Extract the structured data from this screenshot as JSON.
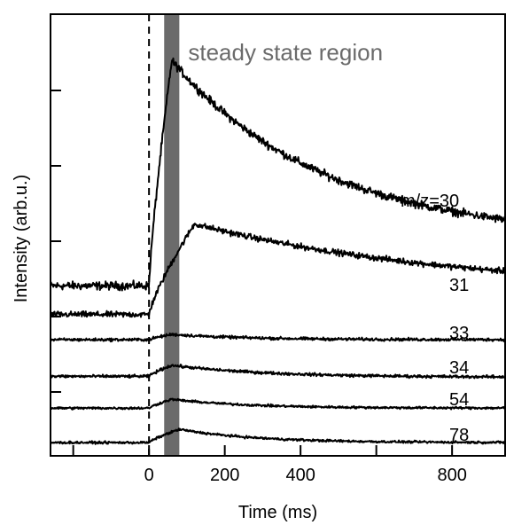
{
  "chart_data": {
    "type": "line",
    "xlabel": "Time (ms)",
    "ylabel": "Intensity (arb.u.)",
    "xlim": [
      -260,
      940
    ],
    "ylim": [
      0,
      10
    ],
    "x_ticks": [
      0,
      200,
      400,
      800
    ],
    "x_tick_labels": [
      "0",
      "200",
      "400",
      "800"
    ],
    "y_ticks_count": 6,
    "grid": false,
    "legend": "none",
    "trigger_line": {
      "x": 0,
      "style": "dashed"
    },
    "highlight_region": {
      "x_start": 40,
      "x_end": 80,
      "label": "steady state region",
      "color": "#6b6b6b"
    },
    "series": [
      {
        "name": "m/z=30",
        "label": "m/z=30",
        "baseline": 3.85,
        "peak": 8.95,
        "peak_time": 60,
        "tail": 4.9,
        "tau": 400,
        "noise": 0.07
      },
      {
        "name": "31",
        "label": "31",
        "baseline": 3.2,
        "peak": 5.25,
        "peak_time": 120,
        "tail": 3.7,
        "tau": 700,
        "noise": 0.05
      },
      {
        "name": "33",
        "label": "33",
        "baseline": 2.63,
        "peak": 2.75,
        "peak_time": 60,
        "tail": 2.63,
        "tau": 200,
        "noise": 0.025
      },
      {
        "name": "34",
        "label": "34",
        "baseline": 1.8,
        "peak": 2.05,
        "peak_time": 60,
        "tail": 1.78,
        "tau": 250,
        "noise": 0.025
      },
      {
        "name": "54",
        "label": "54",
        "baseline": 1.08,
        "peak": 1.28,
        "peak_time": 60,
        "tail": 1.08,
        "tau": 200,
        "noise": 0.02
      },
      {
        "name": "78",
        "label": "78",
        "baseline": 0.3,
        "peak": 0.6,
        "peak_time": 80,
        "tail": 0.3,
        "tau": 200,
        "noise": 0.02
      }
    ]
  }
}
